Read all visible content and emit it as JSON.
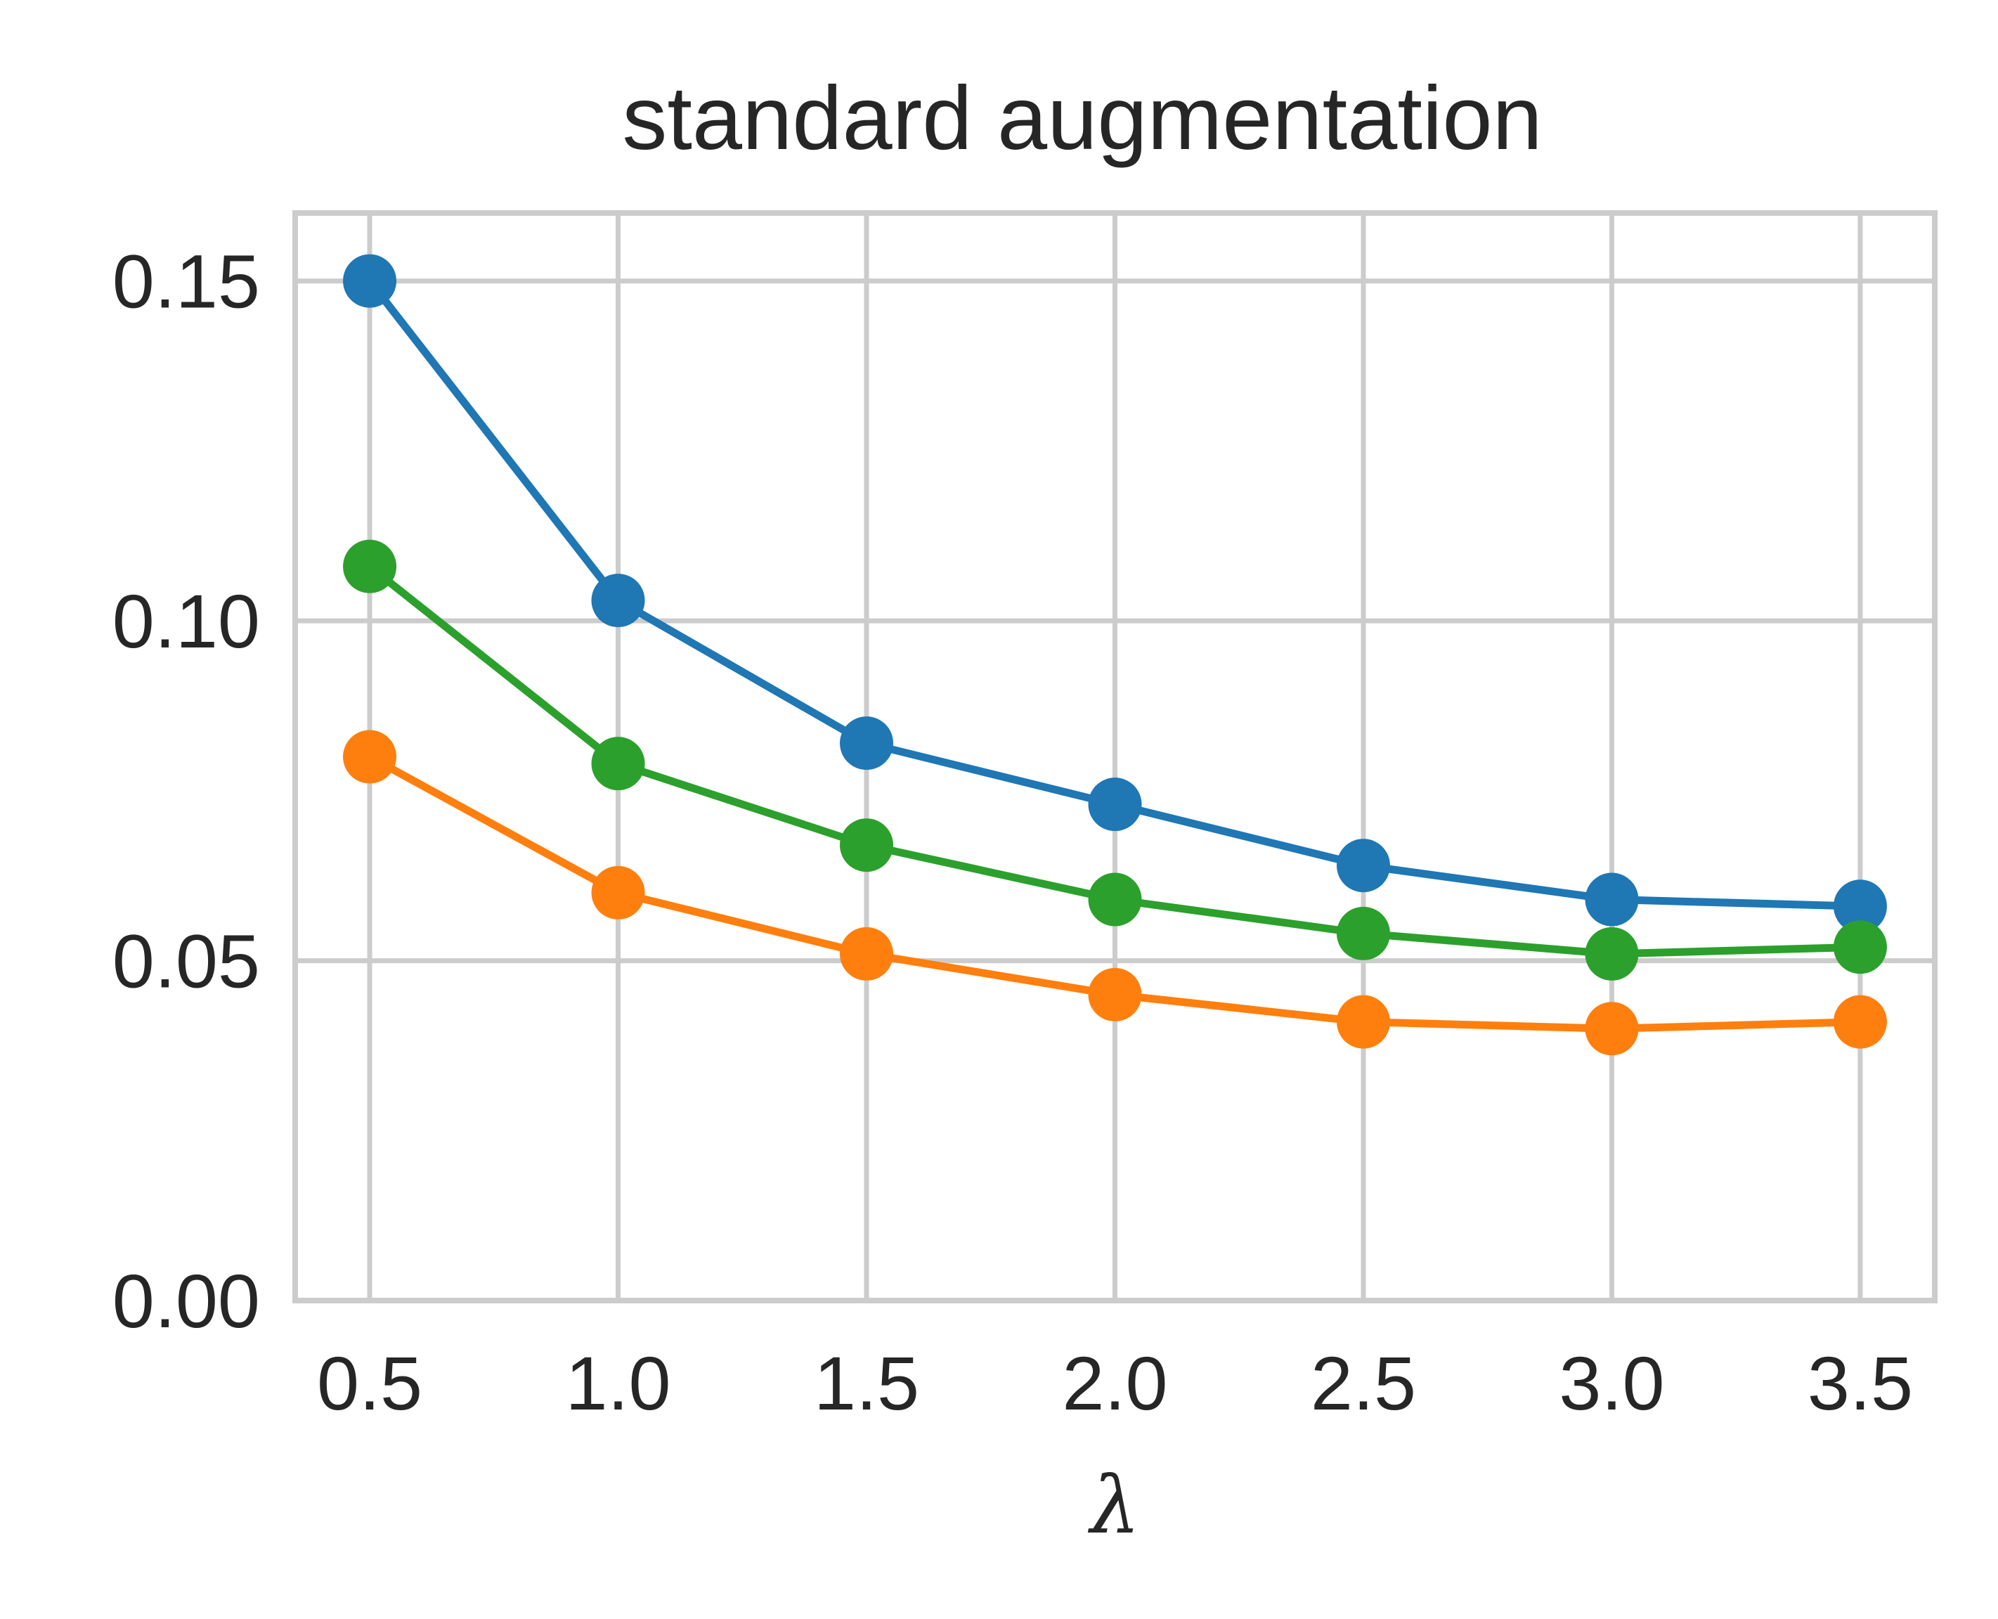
{
  "chart_data": {
    "type": "line",
    "title": "standard augmentation",
    "xlabel": "λ",
    "ylabel": "",
    "x": [
      0.5,
      1.0,
      1.5,
      2.0,
      2.5,
      3.0,
      3.5
    ],
    "x_tick_labels": [
      "0.5",
      "1.0",
      "1.5",
      "2.0",
      "2.5",
      "3.0",
      "3.5"
    ],
    "y_ticks": [
      0.0,
      0.05,
      0.1,
      0.15
    ],
    "y_tick_labels": [
      "0.00",
      "0.05",
      "0.10",
      "0.15"
    ],
    "xlim": [
      0.35,
      3.65
    ],
    "ylim": [
      0.0,
      0.16
    ],
    "grid": true,
    "legend": "none",
    "series": [
      {
        "color": "#1f77b4",
        "values": [
          0.15,
          0.103,
          0.082,
          0.073,
          0.064,
          0.059,
          0.058
        ]
      },
      {
        "color": "#2ca02c",
        "values": [
          0.108,
          0.079,
          0.067,
          0.059,
          0.054,
          0.051,
          0.052
        ]
      },
      {
        "color": "#ff7f0e",
        "values": [
          0.08,
          0.06,
          0.051,
          0.045,
          0.041,
          0.04,
          0.041
        ]
      }
    ]
  }
}
